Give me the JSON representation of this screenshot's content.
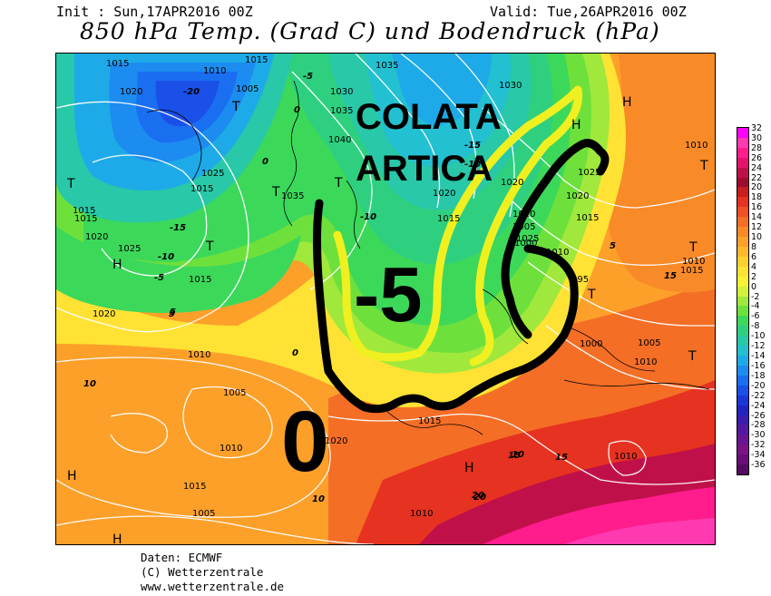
{
  "header": {
    "init": "Init : Sun,17APR2016 00Z",
    "valid": "Valid: Tue,26APR2016 00Z",
    "title": "850 hPa Temp. (Grad C) und Bodendruck (hPa)"
  },
  "annotations": {
    "colata_line1": "COLATA",
    "colata_line2": "ARTICA",
    "big_minus5": "-5",
    "big_zero": "0"
  },
  "pressure_labels": [
    "1015",
    "1010",
    "1005",
    "1020",
    "1015",
    "1035",
    "1030",
    "1040",
    "1035",
    "1020",
    "1025",
    "1020",
    "1015",
    "1010",
    "1015",
    "1025",
    "1015",
    "1020",
    "1030",
    "1035",
    "1015",
    "1025",
    "1020",
    "1015",
    "1010",
    "1005",
    "1000",
    "995",
    "1000",
    "1005",
    "1010",
    "1015",
    "1020",
    "1010",
    "1005",
    "1010",
    "1005",
    "1010",
    "1015",
    "1010",
    "1020",
    "1025",
    "1015",
    "1010",
    "1015",
    "1010"
  ],
  "temp_labels": [
    "-20",
    "-15",
    "-10",
    "-5",
    "0",
    "5",
    "10",
    "15",
    "20",
    "-10",
    "-15",
    "-10",
    "-5",
    "0",
    "5",
    "10",
    "15",
    "0",
    "5",
    "10",
    "15",
    "20"
  ],
  "highs_lows": [
    "H",
    "H",
    "H",
    "H",
    "H",
    "H",
    "T",
    "T",
    "T",
    "T",
    "T",
    "T",
    "T",
    "T",
    "T"
  ],
  "colorbar": [
    {
      "value": "32",
      "color": "#ff00ff"
    },
    {
      "value": "30",
      "color": "#ff3ab0"
    },
    {
      "value": "28",
      "color": "#ff1c8c"
    },
    {
      "value": "26",
      "color": "#e8126e"
    },
    {
      "value": "24",
      "color": "#c0104a"
    },
    {
      "value": "22",
      "color": "#a00c30"
    },
    {
      "value": "20",
      "color": "#c81e1e"
    },
    {
      "value": "18",
      "color": "#e63220"
    },
    {
      "value": "16",
      "color": "#f05024"
    },
    {
      "value": "14",
      "color": "#f46e26"
    },
    {
      "value": "12",
      "color": "#f88a28"
    },
    {
      "value": "10",
      "color": "#fca02a"
    },
    {
      "value": "8",
      "color": "#ffb82c"
    },
    {
      "value": "6",
      "color": "#ffd030"
    },
    {
      "value": "4",
      "color": "#ffe234"
    },
    {
      "value": "2",
      "color": "#f6f236"
    },
    {
      "value": "0",
      "color": "#d2f03c"
    },
    {
      "value": "-2",
      "color": "#a0e83c"
    },
    {
      "value": "-4",
      "color": "#6ee03c"
    },
    {
      "value": "-6",
      "color": "#3cd85a"
    },
    {
      "value": "-8",
      "color": "#2ed080"
    },
    {
      "value": "-10",
      "color": "#28c8a8"
    },
    {
      "value": "-12",
      "color": "#22c0d0"
    },
    {
      "value": "-14",
      "color": "#1eaae8"
    },
    {
      "value": "-16",
      "color": "#1c8cf0"
    },
    {
      "value": "-18",
      "color": "#1a6ef0"
    },
    {
      "value": "-20",
      "color": "#1a50e8"
    },
    {
      "value": "-22",
      "color": "#1c36d8"
    },
    {
      "value": "-24",
      "color": "#2224c0"
    },
    {
      "value": "-26",
      "color": "#3a1cb0"
    },
    {
      "value": "-28",
      "color": "#5418a0"
    },
    {
      "value": "-30",
      "color": "#6a1494"
    },
    {
      "value": "-32",
      "color": "#7a1288"
    },
    {
      "value": "-34",
      "color": "#6a0e78"
    },
    {
      "value": "-36",
      "color": "#520a62"
    }
  ],
  "footer": {
    "line1": "Daten: ECMWF",
    "line2": "(C) Wetterzentrale",
    "line3": "www.wetterzentrale.de"
  }
}
